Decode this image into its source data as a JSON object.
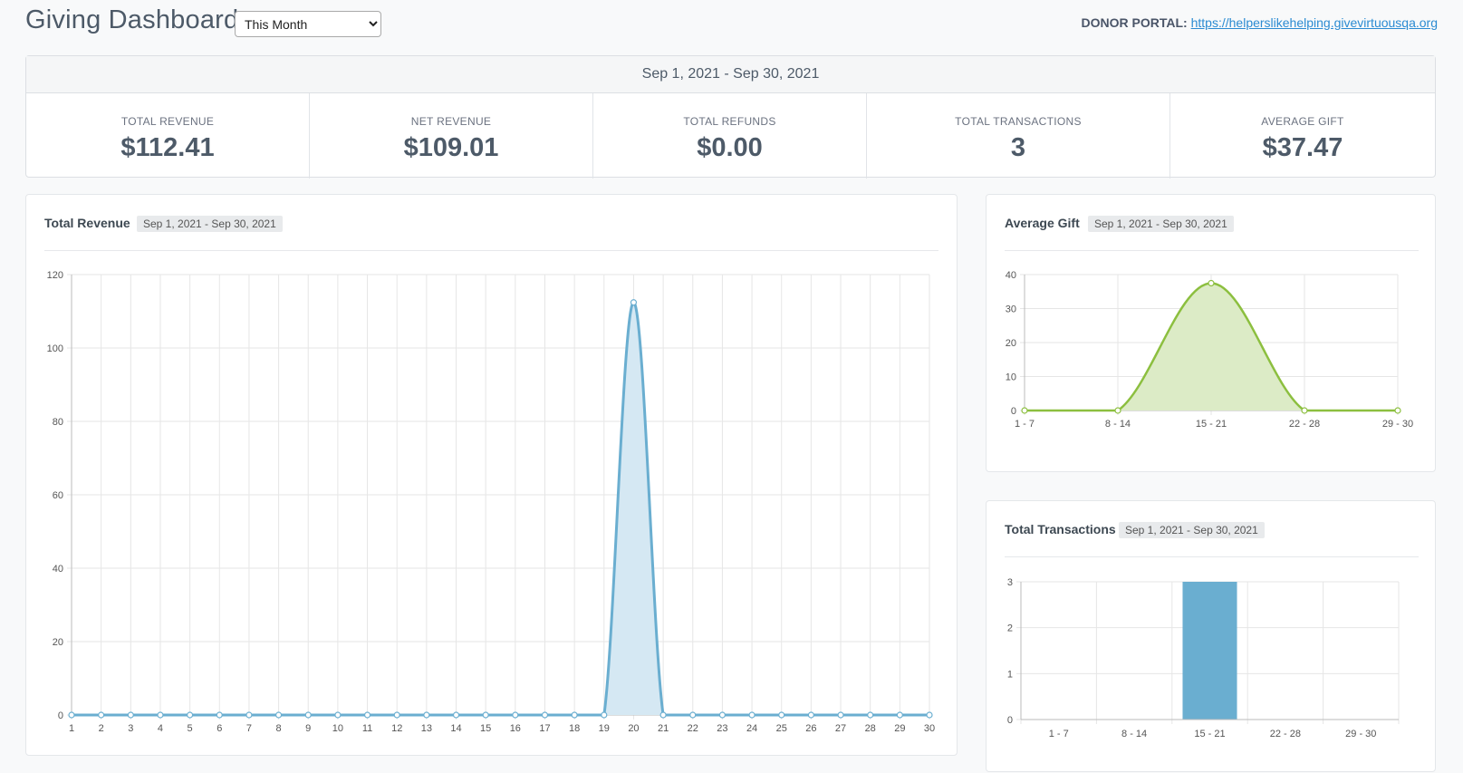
{
  "header": {
    "title": "Giving Dashboard",
    "range_select": "This Month",
    "portal_label": "DONOR PORTAL:",
    "portal_url": "https://helperslikehelping.givevirtuousqa.org"
  },
  "summary": {
    "date_range": "Sep 1, 2021 - Sep 30, 2021",
    "stats": [
      {
        "label": "TOTAL REVENUE",
        "value": "$112.41"
      },
      {
        "label": "NET REVENUE",
        "value": "$109.01"
      },
      {
        "label": "TOTAL REFUNDS",
        "value": "$0.00"
      },
      {
        "label": "TOTAL TRANSACTIONS",
        "value": "3"
      },
      {
        "label": "AVERAGE GIFT",
        "value": "$37.47"
      }
    ]
  },
  "panels": {
    "revenue": {
      "title": "Total Revenue",
      "date_range": "Sep 1, 2021 - Sep 30, 2021"
    },
    "avg_gift": {
      "title": "Average Gift",
      "date_range": "Sep 1, 2021 - Sep 30, 2021"
    },
    "transactions": {
      "title": "Total Transactions",
      "date_range": "Sep 1, 2021 - Sep 30, 2021"
    }
  },
  "chart_data": [
    {
      "type": "area",
      "title": "Total Revenue",
      "x": [
        "1",
        "2",
        "3",
        "4",
        "5",
        "6",
        "7",
        "8",
        "9",
        "10",
        "11",
        "12",
        "13",
        "14",
        "15",
        "16",
        "17",
        "18",
        "19",
        "20",
        "21",
        "22",
        "23",
        "24",
        "25",
        "26",
        "27",
        "28",
        "29",
        "30"
      ],
      "values": [
        0,
        0,
        0,
        0,
        0,
        0,
        0,
        0,
        0,
        0,
        0,
        0,
        0,
        0,
        0,
        0,
        0,
        0,
        0,
        112.41,
        0,
        0,
        0,
        0,
        0,
        0,
        0,
        0,
        0,
        0
      ],
      "ylim": [
        0,
        120
      ],
      "yticks": [
        0,
        20,
        40,
        60,
        80,
        100,
        120
      ],
      "grid": true,
      "color": "#6aaed0",
      "fill": "#d5e8f3"
    },
    {
      "type": "area",
      "title": "Average Gift",
      "x": [
        "1 - 7",
        "8 - 14",
        "15 - 21",
        "22 - 28",
        "29 - 30"
      ],
      "values": [
        0,
        0,
        37.47,
        0,
        0
      ],
      "ylim": [
        0,
        40
      ],
      "yticks": [
        0,
        10,
        20,
        30,
        40
      ],
      "grid": true,
      "color": "#8cbf3f",
      "fill": "#dcebc6"
    },
    {
      "type": "bar",
      "title": "Total Transactions",
      "categories": [
        "1 - 7",
        "8 - 14",
        "15 - 21",
        "22 - 28",
        "29 - 30"
      ],
      "values": [
        0,
        0,
        3,
        0,
        0
      ],
      "ylim": [
        0,
        3
      ],
      "yticks": [
        0,
        1,
        2,
        3
      ],
      "grid": true,
      "color": "#6aaed0"
    }
  ]
}
